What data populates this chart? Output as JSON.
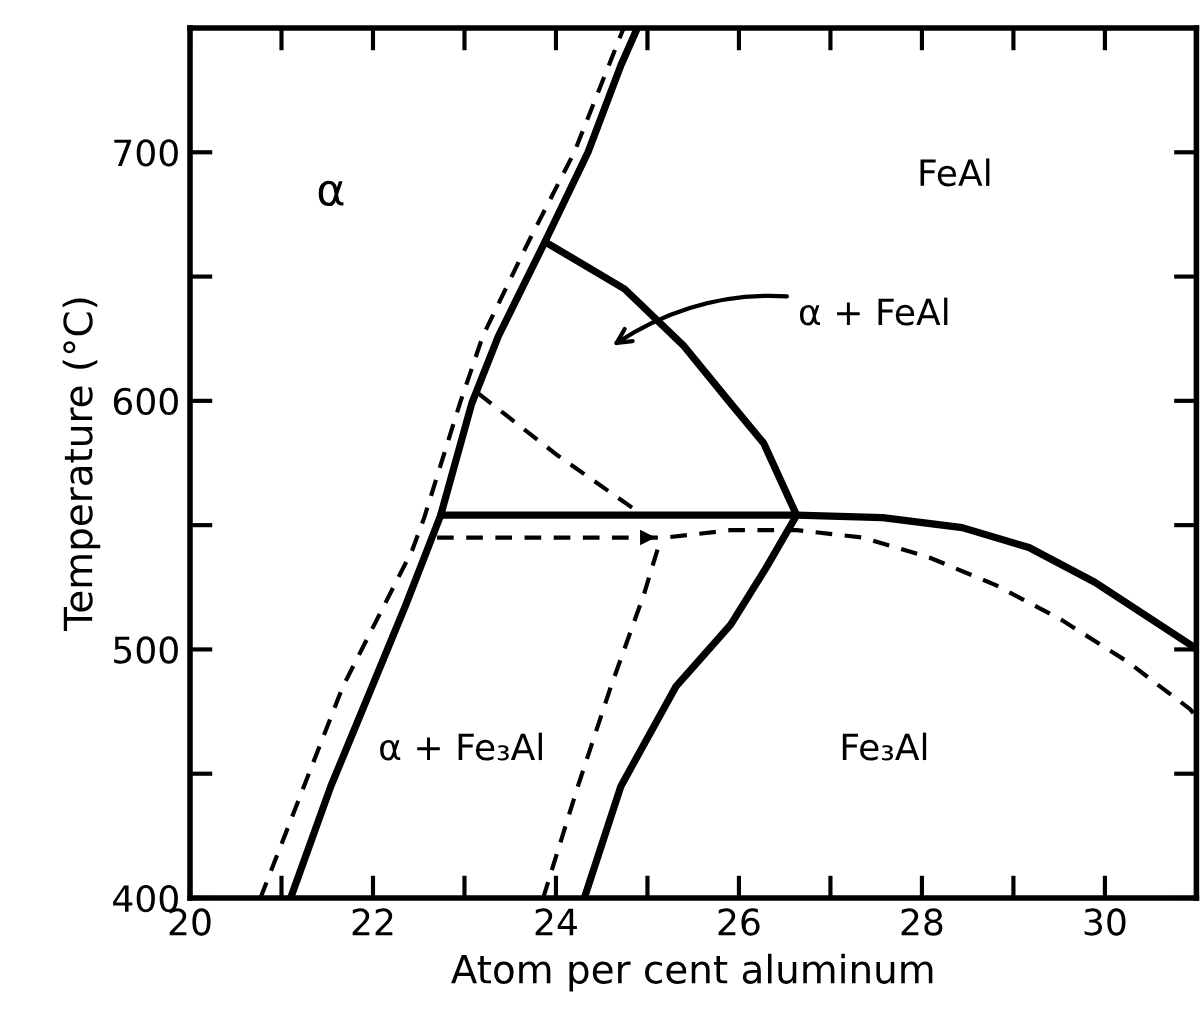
{
  "chart_data": {
    "type": "line",
    "xlabel": "Atom per cent aluminum",
    "ylabel": "Temperature (°C)",
    "xlim": [
      20,
      31
    ],
    "ylim": [
      400,
      750
    ],
    "xticks": [
      20,
      {
        "value": 21,
        "label": null
      },
      22,
      {
        "value": 23,
        "label": null
      },
      24,
      {
        "value": 25,
        "label": null
      },
      26,
      {
        "value": 27,
        "label": null
      },
      28,
      {
        "value": 29,
        "label": null
      },
      30
    ],
    "yticks": [
      400,
      {
        "value": 450,
        "label": null
      },
      500,
      {
        "value": 550,
        "label": null
      },
      600,
      {
        "value": 650,
        "label": null
      },
      700
    ],
    "grid": false,
    "series": [
      {
        "color": "#000000",
        "line_style": "solid",
        "x": [
          21.1,
          21.54,
          21.99,
          22.36,
          22.74,
          23.08,
          23.37,
          23.88,
          24.35,
          24.71,
          24.89
        ],
        "values": [
          400,
          445,
          485,
          518,
          554,
          599,
          626,
          664,
          700,
          735,
          750
        ]
      },
      {
        "color": "#000000",
        "line_style": "dashed",
        "x": [
          20.77,
          21.67,
          22.43,
          22.56,
          22.95,
          23.2,
          23.7,
          24.2,
          24.74
        ],
        "values": [
          400,
          485,
          540,
          553,
          599,
          626,
          664,
          700,
          750
        ]
      },
      {
        "color": "#000000",
        "line_style": "solid",
        "x": [
          22.74,
          26.63,
          27.57,
          28.44,
          29.17,
          29.89,
          30.93,
          31.0
        ],
        "values": [
          554,
          554,
          553,
          549,
          541,
          527,
          502,
          500
        ]
      },
      {
        "color": "#000000",
        "line_style": "solid",
        "x": [
          23.88,
          24.75,
          25.4,
          25.91,
          26.27,
          26.63
        ],
        "values": [
          664,
          645,
          622,
          599,
          583,
          554
        ]
      },
      {
        "color": "#000000",
        "line_style": "solid",
        "x": [
          24.31,
          24.71,
          25.31,
          25.91,
          26.3,
          26.63
        ],
        "values": [
          400,
          445,
          485,
          510,
          533,
          554
        ]
      },
      {
        "color": "#000000",
        "line_style": "dashed",
        "x": [
          22.7,
          25.2,
          25.91,
          26.63,
          27.35,
          28.08,
          28.8,
          29.52,
          30.25,
          30.93,
          31.0
        ],
        "values": [
          545,
          545,
          548,
          548,
          545,
          537,
          526,
          512,
          495,
          476,
          473
        ]
      },
      {
        "color": "#000000",
        "line_style": "dashed",
        "x": [
          23.86,
          24.24,
          24.6,
          24.96,
          25.15
        ],
        "values": [
          400,
          445,
          485,
          522,
          545
        ]
      },
      {
        "color": "#000000",
        "line_style": "dashed",
        "x": [
          23.15,
          24.02,
          24.95
        ],
        "values": [
          603,
          578,
          554
        ]
      }
    ],
    "annotations": [
      "α",
      "FeAl",
      "α + FeAl",
      "α + Fe₃Al",
      "Fe₃Al"
    ]
  }
}
